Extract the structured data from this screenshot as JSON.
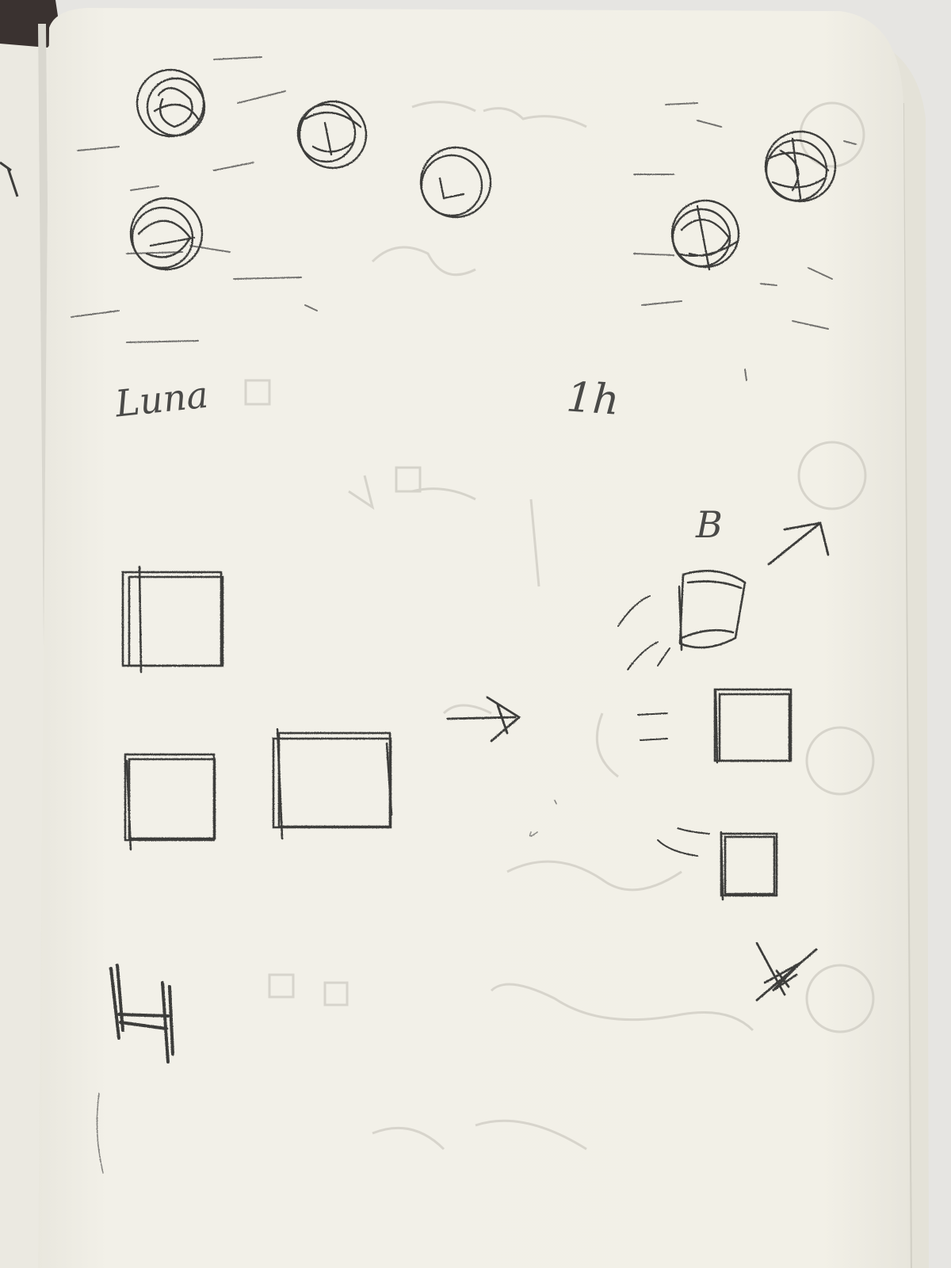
{
  "colors": {
    "background": "#e6e5e2",
    "page": "#f1efe6",
    "pencil": "#3d3d3b",
    "binding": "#3a3230",
    "ghost": "#c9c8c0"
  },
  "labels": {
    "left_label": "Luna",
    "right_label": "1h",
    "b_label": "B"
  },
  "icons": {
    "diagonal_arrow": "arrow-up-right-icon",
    "right_arrow": "arrow-right-icon",
    "star_mark": "star-scribble-icon",
    "h_mark": "h-scribble-icon"
  }
}
